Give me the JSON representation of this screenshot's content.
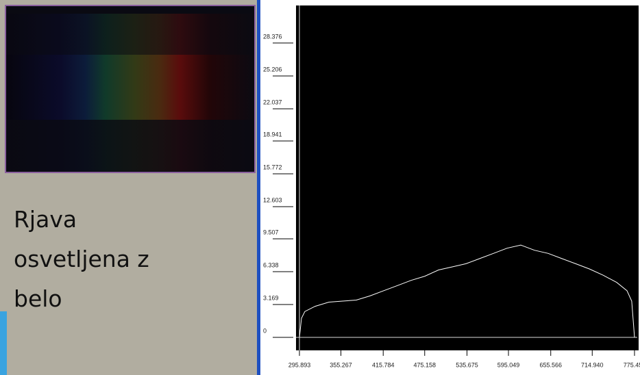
{
  "chart_data": {
    "type": "line",
    "annotation": "Rjava osvetljena z belo",
    "x": [
      295.9,
      298.8,
      303.7,
      318.4,
      338.1,
      357.7,
      377.3,
      396.9,
      416.5,
      436.1,
      455.8,
      475.4,
      495.0,
      514.6,
      534.2,
      553.8,
      573.5,
      593.1,
      612.7,
      632.3,
      651.9,
      671.5,
      691.2,
      710.8,
      730.4,
      750.0,
      764.7,
      771.5,
      775.5
    ],
    "series": [
      {
        "color": "#ffffff",
        "values": [
          0,
          1.85,
          2.5,
          3.0,
          3.4,
          3.5,
          3.6,
          4.0,
          4.5,
          5.0,
          5.5,
          5.9,
          6.5,
          6.8,
          7.1,
          7.6,
          8.1,
          8.6,
          8.9,
          8.4,
          8.1,
          7.6,
          7.1,
          6.6,
          6.0,
          5.3,
          4.5,
          3.5,
          0
        ]
      }
    ],
    "xlim": [
      291,
      779.4
    ],
    "ylim": [
      -1.25,
      32.0
    ],
    "xticks": [
      295.893,
      355.267,
      415.784,
      475.158,
      535.675,
      595.049,
      655.566,
      {
        "value": 714.94,
        "label": "714.940"
      },
      775.457
    ],
    "yticks": [
      0,
      3.169,
      6.338,
      9.507,
      12.603,
      15.772,
      18.941,
      22.037,
      25.206,
      28.376
    ]
  }
}
